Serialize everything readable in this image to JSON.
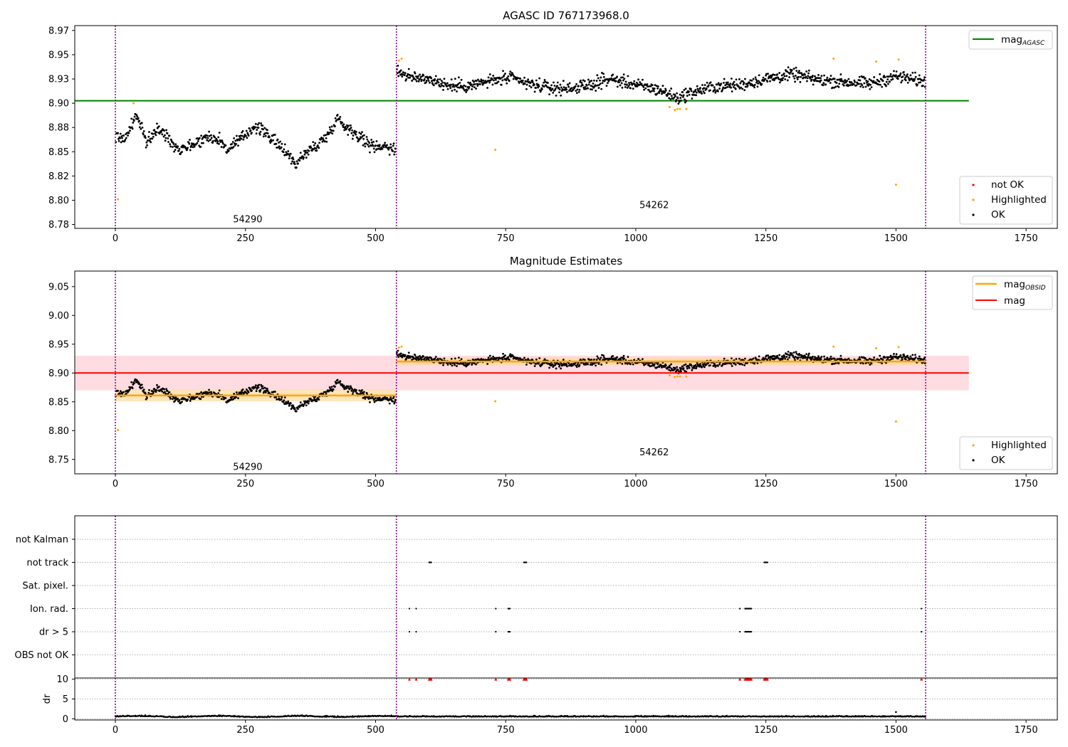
{
  "colors": {
    "ok": "#000000",
    "highlighted": "#ffa500",
    "not_ok": "#ff0000",
    "agasc_line": "#008000",
    "mag_line": "#ff0000",
    "mag_band": "#ffc0c8",
    "obsid_line": "#ffa500",
    "obsid_band": "#ffd9a0",
    "obs_boundary": "#800080"
  },
  "chart_data": [
    {
      "type": "scatter",
      "title": "AGASC ID 767173968.0",
      "xlabel": "",
      "ylabel": "",
      "xlim": [
        -78,
        1810
      ],
      "ylim": [
        8.771,
        8.98
      ],
      "xticks": [
        0,
        250,
        500,
        750,
        1000,
        1250,
        1500,
        1750
      ],
      "yticks": [
        8.775,
        8.8,
        8.825,
        8.85,
        8.875,
        8.9,
        8.925,
        8.95,
        8.975
      ],
      "grid": false,
      "legend_upper": {
        "placement": "top-right",
        "entries": [
          "mag_AGASC"
        ]
      },
      "legend_lower": {
        "placement": "bottom-right",
        "entries": [
          "not OK",
          "Highlighted",
          "OK"
        ]
      },
      "reference_lines": [
        {
          "name": "mag_AGASC",
          "y": 8.9025,
          "x_range": [
            -78,
            1640
          ]
        }
      ],
      "obs_boundaries": [
        0,
        540,
        1557
      ],
      "obs_labels": [
        {
          "text": "54290",
          "x": 268,
          "y": 8.78
        },
        {
          "text": "54262",
          "x": 1049,
          "y": 8.795
        }
      ],
      "observations": [
        {
          "obsid": "54290",
          "x_range": [
            0,
            540
          ],
          "mean": 8.862,
          "wave": [
            [
              0,
              8.866
            ],
            [
              20,
              8.864
            ],
            [
              40,
              8.888
            ],
            [
              60,
              8.86
            ],
            [
              80,
              8.873
            ],
            [
              100,
              8.866
            ],
            [
              120,
              8.853
            ],
            [
              150,
              8.858
            ],
            [
              180,
              8.866
            ],
            [
              200,
              8.862
            ],
            [
              215,
              8.852
            ],
            [
              240,
              8.862
            ],
            [
              265,
              8.876
            ],
            [
              290,
              8.87
            ],
            [
              310,
              8.858
            ],
            [
              330,
              8.85
            ],
            [
              345,
              8.837
            ],
            [
              365,
              8.848
            ],
            [
              390,
              8.858
            ],
            [
              410,
              8.868
            ],
            [
              425,
              8.885
            ],
            [
              445,
              8.875
            ],
            [
              470,
              8.866
            ],
            [
              490,
              8.856
            ],
            [
              520,
              8.856
            ],
            [
              540,
              8.852
            ]
          ]
        },
        {
          "obsid": "54262",
          "x_range": [
            540,
            1557
          ],
          "mean": 8.92,
          "wave": [
            [
              540,
              8.934
            ],
            [
              570,
              8.926
            ],
            [
              600,
              8.926
            ],
            [
              640,
              8.918
            ],
            [
              680,
              8.918
            ],
            [
              720,
              8.923
            ],
            [
              760,
              8.926
            ],
            [
              800,
              8.919
            ],
            [
              850,
              8.915
            ],
            [
              900,
              8.917
            ],
            [
              950,
              8.925
            ],
            [
              1000,
              8.919
            ],
            [
              1050,
              8.913
            ],
            [
              1080,
              8.905
            ],
            [
              1100,
              8.91
            ],
            [
              1150,
              8.917
            ],
            [
              1200,
              8.919
            ],
            [
              1250,
              8.925
            ],
            [
              1300,
              8.93
            ],
            [
              1350,
              8.924
            ],
            [
              1400,
              8.922
            ],
            [
              1450,
              8.92
            ],
            [
              1500,
              8.928
            ],
            [
              1557,
              8.922
            ]
          ]
        }
      ],
      "highlighted_points": [
        [
          5,
          8.801
        ],
        [
          35,
          8.9
        ],
        [
          545,
          8.944
        ],
        [
          550,
          8.946
        ],
        [
          730,
          8.852
        ],
        [
          1065,
          8.896
        ],
        [
          1075,
          8.893
        ],
        [
          1080,
          8.894
        ],
        [
          1085,
          8.894
        ],
        [
          1097,
          8.894
        ],
        [
          1380,
          8.946
        ],
        [
          1462,
          8.943
        ],
        [
          1500,
          8.816
        ],
        [
          1505,
          8.945
        ]
      ]
    },
    {
      "type": "scatter",
      "title": "Magnitude Estimates",
      "xlabel": "",
      "ylabel": "",
      "xlim": [
        -78,
        1810
      ],
      "ylim": [
        8.725,
        9.077
      ],
      "xticks": [
        0,
        250,
        500,
        750,
        1000,
        1250,
        1500,
        1750
      ],
      "yticks": [
        8.75,
        8.8,
        8.85,
        8.9,
        8.95,
        9.0,
        9.05
      ],
      "grid": false,
      "legend_upper": {
        "placement": "top-right",
        "entries": [
          "mag_OBSID",
          "mag"
        ]
      },
      "legend_lower": {
        "placement": "bottom-right",
        "entries": [
          "Highlighted",
          "OK"
        ]
      },
      "mag_line": {
        "y": 8.9,
        "band": [
          8.87,
          8.93
        ],
        "x_range": [
          -78,
          1640
        ]
      },
      "obsid_lines": [
        {
          "x_range": [
            0,
            540
          ],
          "y": 8.861,
          "band": [
            8.851,
            8.871
          ]
        },
        {
          "x_range": [
            540,
            1557
          ],
          "y": 8.92,
          "band": [
            8.913,
            8.927
          ]
        }
      ],
      "obs_boundaries": [
        0,
        540,
        1557
      ],
      "obs_labels": [
        {
          "text": "54290",
          "x": 268,
          "y": 8.737
        },
        {
          "text": "54262",
          "x": 1049,
          "y": 8.762
        }
      ],
      "highlighted_points": [
        [
          5,
          8.801
        ],
        [
          545,
          8.944
        ],
        [
          550,
          8.946
        ],
        [
          730,
          8.851
        ],
        [
          1065,
          8.896
        ],
        [
          1075,
          8.893
        ],
        [
          1080,
          8.894
        ],
        [
          1085,
          8.894
        ],
        [
          1097,
          8.894
        ],
        [
          1380,
          8.946
        ],
        [
          1462,
          8.943
        ],
        [
          1500,
          8.816
        ],
        [
          1505,
          8.945
        ]
      ]
    },
    {
      "type": "scatter",
      "title": "",
      "xlabel": "",
      "ylabel": "",
      "xlim": [
        -78,
        1810
      ],
      "categories": [
        "not Kalman",
        "not track",
        "Sat. pixel.",
        "Ion. rad.",
        "dr > 5",
        "OBS not OK"
      ],
      "flag_points": {
        "not track": [
          [
            603,
            607
          ],
          [
            785,
            790
          ],
          [
            1247,
            1253
          ]
        ],
        "Ion. rad.": [
          [
            565,
            565
          ],
          [
            578,
            578
          ],
          [
            731,
            731
          ],
          [
            755,
            758
          ],
          [
            1200,
            1200
          ],
          [
            1210,
            1222
          ]
        ],
        "dr > 5": [
          [
            565,
            565
          ],
          [
            578,
            578
          ],
          [
            731,
            731
          ],
          [
            755,
            758
          ],
          [
            1200,
            1200
          ],
          [
            1210,
            1222
          ]
        ]
      },
      "flag_single_points": {
        "Ion. rad.": [
          1549
        ],
        "dr > 5": [
          1549
        ]
      },
      "obs_boundaries": [
        0,
        540,
        1557
      ]
    },
    {
      "type": "scatter",
      "title": "",
      "xlabel": "",
      "ylabel": "dr",
      "xlim": [
        -78,
        1810
      ],
      "ylim": [
        -0.3,
        10.3
      ],
      "xticks": [
        0,
        250,
        500,
        750,
        1000,
        1250,
        1500,
        1750
      ],
      "yticks": [
        0,
        5,
        10
      ],
      "baseline_dr": 0.5,
      "spike_points": [
        [
          1500,
          1.7
        ]
      ],
      "capped_at_10": [
        [
          565,
          565
        ],
        [
          578,
          578
        ],
        [
          603,
          607
        ],
        [
          731,
          731
        ],
        [
          755,
          758
        ],
        [
          785,
          790
        ],
        [
          1200,
          1200
        ],
        [
          1210,
          1222
        ],
        [
          1247,
          1253
        ],
        [
          1549,
          1549
        ]
      ],
      "obs_boundaries": [
        0,
        540,
        1557
      ]
    }
  ],
  "legend": {
    "mag_agasc_base": "mag",
    "mag_agasc_sub": "AGASC",
    "mag_obsid_base": "mag",
    "mag_obsid_sub": "OBSID",
    "mag": "mag",
    "not_ok": "not OK",
    "highlighted": "Highlighted",
    "ok": "OK"
  }
}
